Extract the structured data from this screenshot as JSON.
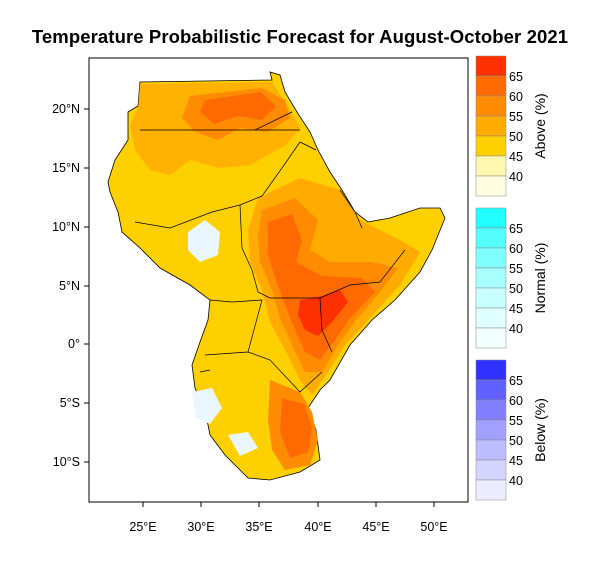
{
  "title": "Temperature Probabilistic Forecast for August-October 2021",
  "map": {
    "lon_ticks": [
      "25°E",
      "30°E",
      "35°E",
      "40°E",
      "45°E",
      "50°E"
    ],
    "lat_ticks": [
      "20°N",
      "15°N",
      "10°N",
      "5°N",
      "0°",
      "5°S",
      "10°S"
    ]
  },
  "legends": [
    {
      "caption": "Above (%)",
      "labels": [
        "65",
        "60",
        "55",
        "50",
        "45",
        "40"
      ],
      "colors": [
        "#ff3000",
        "#ff6a00",
        "#ff8c00",
        "#ffab00",
        "#ffd000",
        "#fff7b0",
        "#fffde0"
      ]
    },
    {
      "caption": "Normal (%)",
      "labels": [
        "65",
        "60",
        "55",
        "50",
        "45",
        "40"
      ],
      "colors": [
        "#22ffff",
        "#55ffff",
        "#80ffff",
        "#a8ffff",
        "#c8ffff",
        "#e0ffff",
        "#f2ffff"
      ]
    },
    {
      "caption": "Below (%)",
      "labels": [
        "65",
        "60",
        "55",
        "50",
        "45",
        "40"
      ],
      "colors": [
        "#3030ff",
        "#6060ff",
        "#8080ff",
        "#a0a0ff",
        "#bcbcff",
        "#d4d4ff",
        "#ececff"
      ]
    }
  ]
}
